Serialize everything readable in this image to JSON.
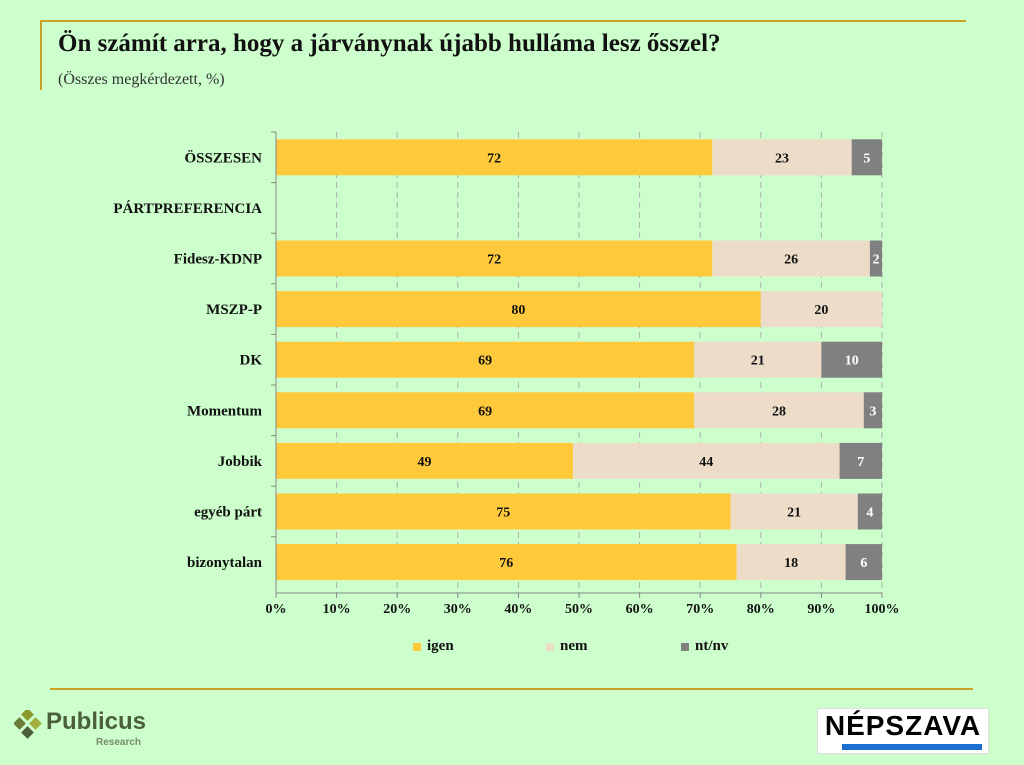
{
  "header": {
    "title": "Ön számít arra, hogy a járványnak újabb hulláma lesz ősszel?",
    "subtitle": "(Összes megkérdezett, %)"
  },
  "colors": {
    "igen": "#ffc93c",
    "nem": "#ecdcc8",
    "ntnv": "#808080",
    "accent": "#c9a227"
  },
  "chart_data": {
    "type": "bar",
    "orientation": "horizontal",
    "stacked": true,
    "categories": [
      "ÖSSZESEN",
      "PÁRTPREFERENCIA",
      "Fidesz-KDNP",
      "MSZP-P",
      "DK",
      "Momentum",
      "Jobbik",
      "egyéb párt",
      "bizonytalan"
    ],
    "series": [
      {
        "name": "igen",
        "values": [
          72,
          null,
          72,
          80,
          69,
          69,
          49,
          75,
          76
        ]
      },
      {
        "name": "nem",
        "values": [
          23,
          null,
          26,
          20,
          21,
          28,
          44,
          21,
          18
        ]
      },
      {
        "name": "nt/nv",
        "values": [
          5,
          null,
          2,
          0,
          10,
          3,
          7,
          4,
          6
        ]
      }
    ],
    "xticks": [
      "0%",
      "10%",
      "20%",
      "30%",
      "40%",
      "50%",
      "60%",
      "70%",
      "80%",
      "90%",
      "100%"
    ],
    "xlim": [
      0,
      100
    ],
    "legend_position": "bottom",
    "grid": true
  },
  "logos": {
    "publicus": "Publicus",
    "publicus_sub": "Research",
    "nepszava": "NÉPSZAVA"
  }
}
